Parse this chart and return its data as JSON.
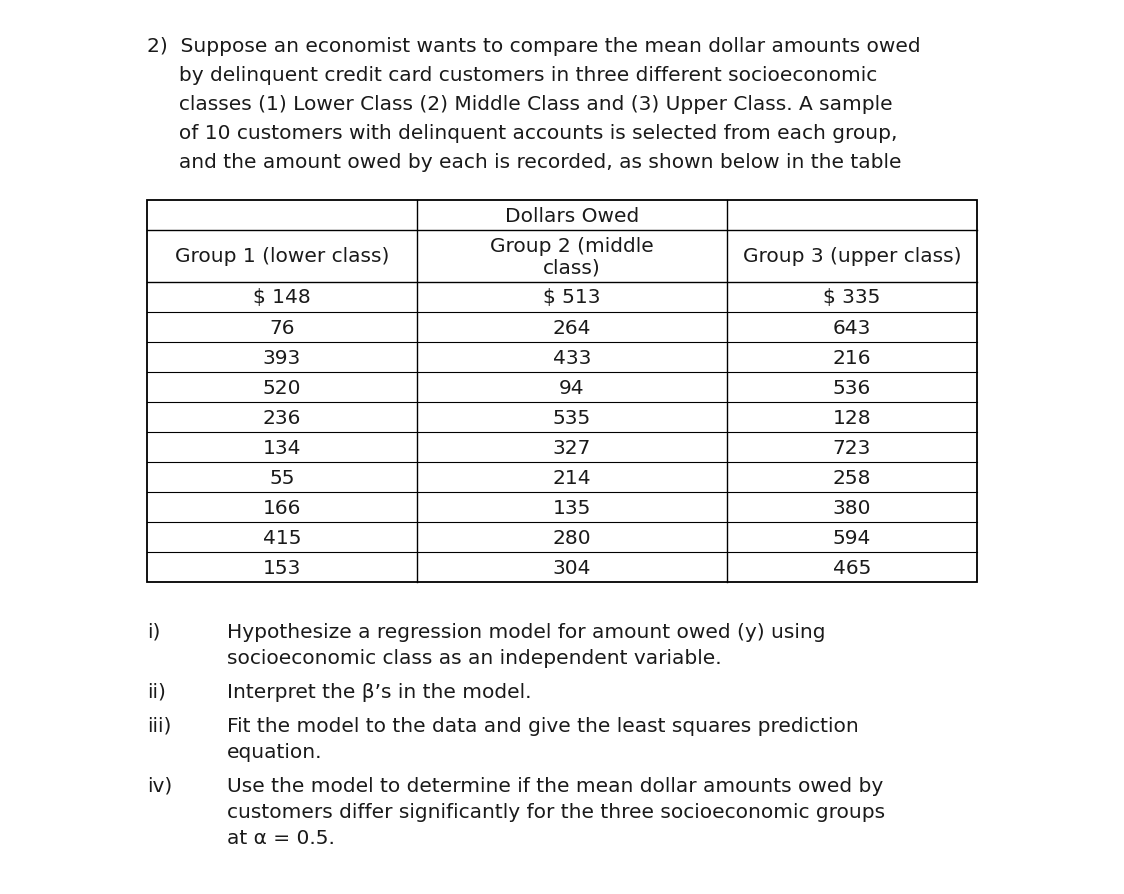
{
  "bg_color": "#ffffff",
  "text_color": "#1a1a1a",
  "intro_lines": [
    "2)  Suppose an economist wants to compare the mean dollar amounts owed",
    "     by delinquent credit card customers in three different socioeconomic",
    "     classes (1) Lower Class (2) Middle Class and (3) Upper Class. A sample",
    "     of 10 customers with delinquent accounts is selected from each group,",
    "     and the amount owed by each is recorded, as shown below in the table"
  ],
  "table_title": "Dollars Owed",
  "col_headers": [
    "Group 1 (lower class)",
    "Group 2 (middle\nclass)",
    "Group 3 (upper class)"
  ],
  "data_rows": [
    [
      "$ 148",
      "$ 513",
      "$ 335"
    ],
    [
      "76",
      "264",
      "643"
    ],
    [
      "393",
      "433",
      "216"
    ],
    [
      "520",
      "94",
      "536"
    ],
    [
      "236",
      "535",
      "128"
    ],
    [
      "134",
      "327",
      "723"
    ],
    [
      "55",
      "214",
      "258"
    ],
    [
      "166",
      "135",
      "380"
    ],
    [
      "415",
      "280",
      "594"
    ],
    [
      "153",
      "304",
      "465"
    ]
  ],
  "questions": [
    {
      "label": "i)",
      "lines": [
        "Hypothesize a regression model for amount owed (y) using",
        "socioeconomic class as an independent variable."
      ]
    },
    {
      "label": "ii)",
      "lines": [
        "Interpret the β’s in the model."
      ]
    },
    {
      "label": "iii)",
      "lines": [
        "Fit the model to the data and give the least squares prediction",
        "equation."
      ]
    },
    {
      "label": "iv)",
      "lines": [
        "Use the model to determine if the mean dollar amounts owed by",
        "customers differ significantly for the three socioeconomic groups",
        "at α = 0.5."
      ]
    }
  ],
  "font_size": 14.5
}
